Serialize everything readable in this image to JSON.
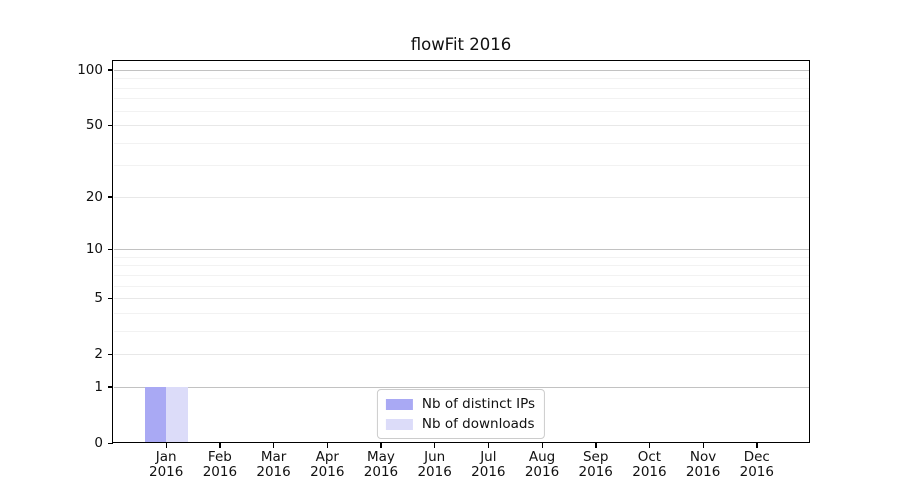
{
  "title": "flowFit 2016",
  "chart_data": {
    "type": "bar",
    "title": "flowFit 2016",
    "categories": [
      "Jan 2016",
      "Feb 2016",
      "Mar 2016",
      "Apr 2016",
      "May 2016",
      "Jun 2016",
      "Jul 2016",
      "Aug 2016",
      "Sep 2016",
      "Oct 2016",
      "Nov 2016",
      "Dec 2016"
    ],
    "series": [
      {
        "name": "Nb of distinct IPs",
        "color": "#a9a9f4",
        "values": [
          1,
          0,
          0,
          0,
          0,
          0,
          0,
          0,
          0,
          0,
          0,
          0
        ]
      },
      {
        "name": "Nb of downloads",
        "color": "#dcdcf9",
        "values": [
          1,
          0,
          0,
          0,
          0,
          0,
          0,
          0,
          0,
          0,
          0,
          0
        ]
      }
    ],
    "xlabel": "",
    "ylabel": "",
    "yscale": "log1p",
    "ylim": [
      0,
      113
    ],
    "y_ticks": [
      0,
      1,
      2,
      5,
      10,
      20,
      50,
      100
    ],
    "y_minor_ticks": [
      3,
      4,
      6,
      7,
      8,
      9,
      30,
      40,
      60,
      70,
      80,
      90
    ],
    "grid": true,
    "legend_position": "lower center"
  },
  "colors": {
    "background": "#ffffff",
    "axis": "#000000",
    "text": "#111111",
    "grid_strong": "#c2c2c2",
    "grid_light": "#e8e8e8",
    "grid_minor": "#f2f2f2",
    "legend_border": "#cccccc"
  }
}
